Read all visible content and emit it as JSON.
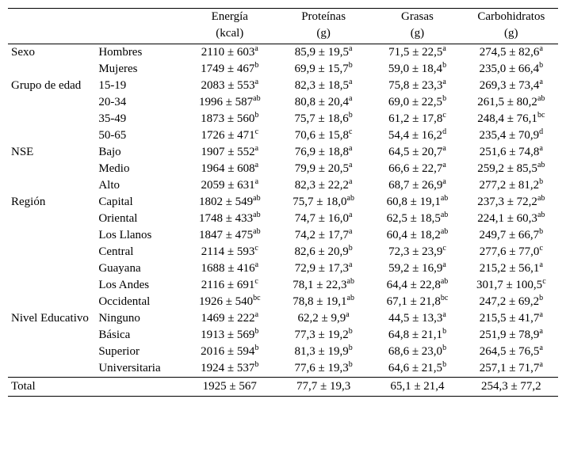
{
  "header": {
    "cols": [
      {
        "name": "Energía",
        "unit": "(kcal)"
      },
      {
        "name": "Proteínas",
        "unit": "(g)"
      },
      {
        "name": "Grasas",
        "unit": "(g)"
      },
      {
        "name": "Carbohidratos",
        "unit": "(g)"
      }
    ]
  },
  "groups": [
    {
      "name": "Sexo",
      "rows": [
        {
          "label": "Hombres",
          "values": [
            {
              "v": "2110 ± 603",
              "s": "a"
            },
            {
              "v": "85,9 ± 19,5",
              "s": "a"
            },
            {
              "v": "71,5 ± 22,5",
              "s": "a"
            },
            {
              "v": "274,5 ± 82,6",
              "s": "a"
            }
          ]
        },
        {
          "label": "Mujeres",
          "values": [
            {
              "v": "1749 ± 467",
              "s": "b"
            },
            {
              "v": "69,9 ± 15,7",
              "s": "b"
            },
            {
              "v": "59,0 ± 18,4",
              "s": "b"
            },
            {
              "v": "235,0 ± 66,4",
              "s": "b"
            }
          ]
        }
      ]
    },
    {
      "name": "Grupo de edad",
      "rows": [
        {
          "label": "15-19",
          "values": [
            {
              "v": "2083 ± 553",
              "s": "a"
            },
            {
              "v": "82,3 ± 18,5",
              "s": "a"
            },
            {
              "v": "75,8 ± 23,3",
              "s": "a"
            },
            {
              "v": "269,3 ±  73,4",
              "s": "a"
            }
          ]
        },
        {
          "label": "20-34",
          "values": [
            {
              "v": "1996 ± 587",
              "s": "ab"
            },
            {
              "v": "80,8 ± 20,4",
              "s": "a"
            },
            {
              "v": "69,0 ± 22,5",
              "s": "b"
            },
            {
              "v": "261,5 ± 80,2",
              "s": "ab"
            }
          ]
        },
        {
          "label": "35-49",
          "values": [
            {
              "v": "1873 ± 560",
              "s": "b"
            },
            {
              "v": "75,7 ± 18,6",
              "s": "b"
            },
            {
              "v": "61,2 ± 17,8",
              "s": "c"
            },
            {
              "v": "248,4 ± 76,1",
              "s": "bc"
            }
          ]
        },
        {
          "label": "50-65",
          "values": [
            {
              "v": "1726 ± 471",
              "s": "c"
            },
            {
              "v": "70,6 ± 15,8",
              "s": "c"
            },
            {
              "v": "54,4 ± 16,2",
              "s": "d"
            },
            {
              "v": "235,4 ± 70,9",
              "s": "d"
            }
          ]
        }
      ]
    },
    {
      "name": "NSE",
      "rows": [
        {
          "label": "Bajo",
          "values": [
            {
              "v": "1907 ± 552",
              "s": "a"
            },
            {
              "v": "76,9 ± 18,8",
              "s": "a"
            },
            {
              "v": "64,5 ± 20,7",
              "s": "a"
            },
            {
              "v": "251,6 ± 74,8",
              "s": "a"
            }
          ]
        },
        {
          "label": "Medio",
          "values": [
            {
              "v": "1964  ± 608",
              "s": "a"
            },
            {
              "v": "79,9 ± 20,5",
              "s": "a"
            },
            {
              "v": "66,6 ± 22,7",
              "s": "a"
            },
            {
              "v": "259,2 ± 85,5",
              "s": "ab"
            }
          ]
        },
        {
          "label": "Alto",
          "values": [
            {
              "v": "2059 ± 631",
              "s": "a"
            },
            {
              "v": "82,3 ± 22,2",
              "s": "a"
            },
            {
              "v": "68,7 ± 26,9",
              "s": "a"
            },
            {
              "v": "277,2 ± 81,2",
              "s": "b"
            }
          ]
        }
      ]
    },
    {
      "name": "Región",
      "rows": [
        {
          "label": "Capital",
          "values": [
            {
              "v": "1802 ± 549",
              "s": "ab"
            },
            {
              "v": "75,7 ± 18,0",
              "s": "ab"
            },
            {
              "v": "60,8 ± 19,1",
              "s": "ab"
            },
            {
              "v": "237,3 ± 72,2",
              "s": "ab"
            }
          ]
        },
        {
          "label": "Oriental",
          "values": [
            {
              "v": "1748 ± 433",
              "s": "ab"
            },
            {
              "v": "74,7 ± 16,0",
              "s": "a"
            },
            {
              "v": "62,5 ± 18,5",
              "s": "ab"
            },
            {
              "v": "224,1 ± 60,3",
              "s": "ab"
            }
          ]
        },
        {
          "label": "Los Llanos",
          "values": [
            {
              "v": "1847 ± 475",
              "s": "ab"
            },
            {
              "v": "74,2 ± 17,7",
              "s": "a"
            },
            {
              "v": "60,4 ± 18,2",
              "s": "ab"
            },
            {
              "v": "249,7 ± 66,7",
              "s": "b"
            }
          ]
        },
        {
          "label": "Central",
          "values": [
            {
              "v": "2114 ± 593",
              "s": "c"
            },
            {
              "v": "82,6 ± 20,9",
              "s": "b"
            },
            {
              "v": "72,3 ± 23,9",
              "s": "c"
            },
            {
              "v": "277,6 ± 77,0",
              "s": "c"
            }
          ]
        },
        {
          "label": "Guayana",
          "values": [
            {
              "v": "1688 ± 416",
              "s": "a"
            },
            {
              "v": "72,9 ± 17,3",
              "s": "a"
            },
            {
              "v": "59,2 ± 16,9",
              "s": "a"
            },
            {
              "v": "215,2 ± 56,1",
              "s": "a"
            }
          ]
        },
        {
          "label": "Los Andes",
          "values": [
            {
              "v": "2116 ± 691",
              "s": "c"
            },
            {
              "v": "78,1 ± 22,3",
              "s": "ab"
            },
            {
              "v": "64,4 ± 22,8",
              "s": "ab"
            },
            {
              "v": "301,7 ± 100,5",
              "s": "c"
            }
          ]
        },
        {
          "label": "Occidental",
          "values": [
            {
              "v": "1926 ± 540",
              "s": "bc"
            },
            {
              "v": "78,8 ± 19,1",
              "s": "ab"
            },
            {
              "v": "67,1 ± 21,8",
              "s": "bc"
            },
            {
              "v": "247,2 ± 69,2",
              "s": "b"
            }
          ]
        }
      ]
    },
    {
      "name": "Nivel Educativo",
      "rows": [
        {
          "label": "Ninguno",
          "values": [
            {
              "v": "1469 ± 222",
              "s": "a"
            },
            {
              "v": " 62,2 ± 9,9",
              "s": "a"
            },
            {
              "v": "44,5 ± 13,3",
              "s": "a"
            },
            {
              "v": "215,5 ± 41,7",
              "s": "a"
            }
          ]
        },
        {
          "label": "Básica",
          "values": [
            {
              "v": "1913 ± 569",
              "s": "b"
            },
            {
              "v": "77,3 ± 19,2",
              "s": "b"
            },
            {
              "v": "64,8 ± 21,1",
              "s": "b"
            },
            {
              "v": "251,9 ± 78,9",
              "s": "a"
            }
          ]
        },
        {
          "label": "Superior",
          "values": [
            {
              "v": "2016 ± 594",
              "s": "b"
            },
            {
              "v": "81,3 ± 19,9",
              "s": "b"
            },
            {
              "v": "68,6 ± 23,0",
              "s": "b"
            },
            {
              "v": "264,5 ± 76,5",
              "s": "a"
            }
          ]
        },
        {
          "label": "Universitaria",
          "values": [
            {
              "v": "1924 ± 537",
              "s": "b"
            },
            {
              "v": "77,6 ± 19,3",
              "s": "b"
            },
            {
              "v": "64,6 ± 21,5",
              "s": "b"
            },
            {
              "v": "257,1  ± 71,7",
              "s": "a"
            }
          ]
        }
      ]
    }
  ],
  "total": {
    "label": "Total",
    "values": [
      {
        "v": "1925 ± 567",
        "s": ""
      },
      {
        "v": "77,7 ± 19,3",
        "s": ""
      },
      {
        "v": "65,1 ± 21,4",
        "s": ""
      },
      {
        "v": "254,3 ± 77,2",
        "s": ""
      }
    ]
  }
}
